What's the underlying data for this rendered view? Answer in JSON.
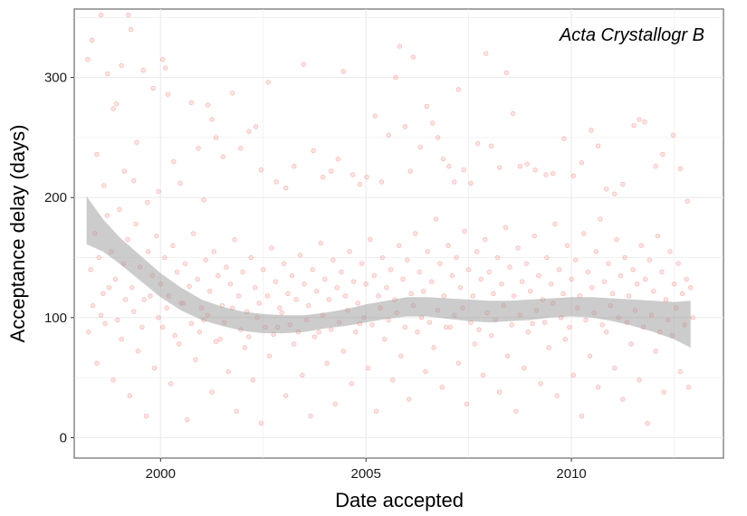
{
  "chart_data": {
    "type": "scatter",
    "title": "",
    "panel_label": "Acta Crystallogr B",
    "xlabel": "Date accepted",
    "ylabel": "Acceptance delay (days)",
    "xlim": [
      1997.9,
      2013.7
    ],
    "ylim": [
      -17,
      357
    ],
    "x_ticks": [
      {
        "value": 2000,
        "label": "2000"
      },
      {
        "value": 2005,
        "label": "2005"
      },
      {
        "value": 2010,
        "label": "2010"
      }
    ],
    "y_ticks": [
      {
        "value": 0,
        "label": "0"
      },
      {
        "value": 100,
        "label": "100"
      },
      {
        "value": 200,
        "label": "200"
      },
      {
        "value": 300,
        "label": "300"
      }
    ],
    "grid": true,
    "points_color": "#f8766d",
    "band_color": "#999999",
    "smooth": {
      "x": [
        1998.2,
        1998.6,
        1999.0,
        1999.5,
        2000.0,
        2000.5,
        2001.0,
        2001.5,
        2002.0,
        2002.5,
        2003.0,
        2003.5,
        2004.0,
        2004.5,
        2005.0,
        2005.5,
        2006.0,
        2006.5,
        2007.0,
        2007.5,
        2008.0,
        2008.5,
        2009.0,
        2009.5,
        2010.0,
        2010.5,
        2011.0,
        2011.5,
        2012.0,
        2012.5,
        2012.9
      ],
      "lower": [
        161,
        155,
        145,
        131,
        117,
        106,
        98,
        93,
        89,
        87,
        87,
        88,
        91,
        93,
        96,
        99,
        101,
        101,
        99,
        97,
        96,
        97,
        98,
        100,
        101,
        100,
        97,
        93,
        88,
        82,
        75
      ],
      "upper": [
        201,
        182,
        167,
        152,
        137,
        125,
        115,
        109,
        105,
        103,
        102,
        102,
        104,
        107,
        111,
        114,
        117,
        117,
        116,
        115,
        114,
        114,
        115,
        116,
        117,
        117,
        116,
        115,
        114,
        113,
        114
      ]
    },
    "points": [
      [
        1998.23,
        315
      ],
      [
        1998.33,
        331
      ],
      [
        1998.45,
        236
      ],
      [
        1998.55,
        352
      ],
      [
        1998.62,
        210
      ],
      [
        1998.71,
        303
      ],
      [
        1998.85,
        274
      ],
      [
        1998.93,
        278
      ],
      [
        1999.05,
        310
      ],
      [
        1999.12,
        222
      ],
      [
        1999.22,
        352
      ],
      [
        1999.28,
        340
      ],
      [
        1999.35,
        214
      ],
      [
        1999.42,
        246
      ],
      [
        1999.58,
        306
      ],
      [
        1999.68,
        196
      ],
      [
        1999.82,
        291
      ],
      [
        1999.95,
        205
      ],
      [
        2000.05,
        315
      ],
      [
        2000.12,
        308
      ],
      [
        2000.18,
        286
      ],
      [
        2000.32,
        230
      ],
      [
        2000.48,
        212
      ],
      [
        2000.75,
        279
      ],
      [
        2000.92,
        241
      ],
      [
        2001.05,
        198
      ],
      [
        2001.15,
        277
      ],
      [
        2001.25,
        265
      ],
      [
        2001.35,
        250
      ],
      [
        2001.52,
        234
      ],
      [
        2001.75,
        287
      ],
      [
        2001.95,
        241
      ],
      [
        2002.15,
        255
      ],
      [
        2002.32,
        259
      ],
      [
        2002.45,
        223
      ],
      [
        2002.62,
        296
      ],
      [
        2002.82,
        213
      ],
      [
        2003.05,
        208
      ],
      [
        2003.25,
        226
      ],
      [
        2003.48,
        311
      ],
      [
        2003.72,
        239
      ],
      [
        2003.95,
        217
      ],
      [
        2004.15,
        222
      ],
      [
        2004.32,
        232
      ],
      [
        2004.45,
        305
      ],
      [
        2004.68,
        219
      ],
      [
        2004.85,
        211
      ],
      [
        2005.02,
        217
      ],
      [
        2005.22,
        268
      ],
      [
        2005.38,
        213
      ],
      [
        2005.55,
        252
      ],
      [
        2005.72,
        300
      ],
      [
        2005.82,
        326
      ],
      [
        2005.95,
        259
      ],
      [
        2006.08,
        222
      ],
      [
        2006.15,
        317
      ],
      [
        2006.32,
        242
      ],
      [
        2006.48,
        276
      ],
      [
        2006.62,
        262
      ],
      [
        2006.75,
        250
      ],
      [
        2006.88,
        232
      ],
      [
        2007.02,
        226
      ],
      [
        2007.15,
        213
      ],
      [
        2007.25,
        290
      ],
      [
        2007.38,
        223
      ],
      [
        2007.55,
        212
      ],
      [
        2007.72,
        245
      ],
      [
        2007.92,
        320
      ],
      [
        2008.05,
        243
      ],
      [
        2008.25,
        225
      ],
      [
        2008.42,
        304
      ],
      [
        2008.58,
        270
      ],
      [
        2008.75,
        226
      ],
      [
        2008.92,
        228
      ],
      [
        2009.12,
        223
      ],
      [
        2009.38,
        219
      ],
      [
        2009.55,
        220
      ],
      [
        2009.82,
        249
      ],
      [
        2010.05,
        218
      ],
      [
        2010.25,
        229
      ],
      [
        2010.48,
        256
      ],
      [
        2010.65,
        243
      ],
      [
        2010.85,
        207
      ],
      [
        2011.05,
        203
      ],
      [
        2011.25,
        211
      ],
      [
        2011.52,
        260
      ],
      [
        2011.65,
        265
      ],
      [
        2011.78,
        263
      ],
      [
        2012.05,
        226
      ],
      [
        2012.22,
        236
      ],
      [
        2012.48,
        252
      ],
      [
        2012.65,
        224
      ],
      [
        2012.82,
        197
      ],
      [
        1998.3,
        140
      ],
      [
        1998.4,
        170
      ],
      [
        1998.5,
        150
      ],
      [
        1998.6,
        120
      ],
      [
        1998.7,
        185
      ],
      [
        1998.8,
        155
      ],
      [
        1998.9,
        132
      ],
      [
        1999.0,
        190
      ],
      [
        1999.1,
        145
      ],
      [
        1999.2,
        165
      ],
      [
        1999.3,
        125
      ],
      [
        1999.4,
        178
      ],
      [
        1999.5,
        142
      ],
      [
        1999.6,
        115
      ],
      [
        1999.7,
        155
      ],
      [
        1999.8,
        135
      ],
      [
        1999.9,
        168
      ],
      [
        2000.0,
        128
      ],
      [
        2000.1,
        150
      ],
      [
        2000.2,
        118
      ],
      [
        2000.3,
        160
      ],
      [
        2000.4,
        138
      ],
      [
        2000.5,
        112
      ],
      [
        2000.6,
        145
      ],
      [
        2000.7,
        126
      ],
      [
        2000.8,
        170
      ],
      [
        2000.9,
        132
      ],
      [
        2001.0,
        108
      ],
      [
        2001.1,
        148
      ],
      [
        2001.2,
        122
      ],
      [
        2001.3,
        155
      ],
      [
        2001.4,
        135
      ],
      [
        2001.5,
        110
      ],
      [
        2001.6,
        142
      ],
      [
        2001.7,
        128
      ],
      [
        2001.8,
        165
      ],
      [
        2001.9,
        118
      ],
      [
        2002.0,
        138
      ],
      [
        2002.1,
        105
      ],
      [
        2002.2,
        150
      ],
      [
        2002.3,
        125
      ],
      [
        2002.4,
        112
      ],
      [
        2002.5,
        140
      ],
      [
        2002.6,
        118
      ],
      [
        2002.7,
        158
      ],
      [
        2002.8,
        130
      ],
      [
        2002.9,
        108
      ],
      [
        2003.0,
        145
      ],
      [
        2003.1,
        120
      ],
      [
        2003.2,
        135
      ],
      [
        2003.3,
        115
      ],
      [
        2003.4,
        152
      ],
      [
        2003.5,
        128
      ],
      [
        2003.6,
        110
      ],
      [
        2003.7,
        140
      ],
      [
        2003.8,
        122
      ],
      [
        2003.9,
        162
      ],
      [
        2004.0,
        132
      ],
      [
        2004.1,
        115
      ],
      [
        2004.2,
        148
      ],
      [
        2004.3,
        125
      ],
      [
        2004.4,
        138
      ],
      [
        2004.5,
        118
      ],
      [
        2004.6,
        155
      ],
      [
        2004.7,
        130
      ],
      [
        2004.8,
        112
      ],
      [
        2004.9,
        145
      ],
      [
        2005.0,
        128
      ],
      [
        2005.1,
        165
      ],
      [
        2005.2,
        135
      ],
      [
        2005.3,
        118
      ],
      [
        2005.4,
        150
      ],
      [
        2005.5,
        125
      ],
      [
        2005.6,
        140
      ],
      [
        2005.7,
        115
      ],
      [
        2005.8,
        160
      ],
      [
        2005.9,
        132
      ],
      [
        2006.0,
        148
      ],
      [
        2006.1,
        120
      ],
      [
        2006.2,
        170
      ],
      [
        2006.3,
        138
      ],
      [
        2006.4,
        122
      ],
      [
        2006.5,
        155
      ],
      [
        2006.6,
        130
      ],
      [
        2006.7,
        182
      ],
      [
        2006.8,
        145
      ],
      [
        2006.9,
        118
      ],
      [
        2007.0,
        160
      ],
      [
        2007.1,
        135
      ],
      [
        2007.2,
        150
      ],
      [
        2007.3,
        125
      ],
      [
        2007.4,
        172
      ],
      [
        2007.5,
        140
      ],
      [
        2007.6,
        118
      ],
      [
        2007.7,
        155
      ],
      [
        2007.8,
        132
      ],
      [
        2007.9,
        165
      ],
      [
        2008.0,
        138
      ],
      [
        2008.1,
        120
      ],
      [
        2008.2,
        150
      ],
      [
        2008.3,
        128
      ],
      [
        2008.4,
        175
      ],
      [
        2008.5,
        142
      ],
      [
        2008.6,
        118
      ],
      [
        2008.7,
        158
      ],
      [
        2008.8,
        130
      ],
      [
        2008.9,
        145
      ],
      [
        2009.0,
        122
      ],
      [
        2009.1,
        168
      ],
      [
        2009.2,
        135
      ],
      [
        2009.3,
        115
      ],
      [
        2009.4,
        150
      ],
      [
        2009.5,
        128
      ],
      [
        2009.6,
        178
      ],
      [
        2009.7,
        140
      ],
      [
        2009.8,
        120
      ],
      [
        2009.9,
        160
      ],
      [
        2010.0,
        132
      ],
      [
        2010.1,
        148
      ],
      [
        2010.2,
        118
      ],
      [
        2010.3,
        170
      ],
      [
        2010.4,
        138
      ],
      [
        2010.5,
        125
      ],
      [
        2010.6,
        155
      ],
      [
        2010.7,
        182
      ],
      [
        2010.8,
        130
      ],
      [
        2010.9,
        145
      ],
      [
        2011.0,
        120
      ],
      [
        2011.1,
        165
      ],
      [
        2011.2,
        135
      ],
      [
        2011.3,
        150
      ],
      [
        2011.4,
        118
      ],
      [
        2011.5,
        140
      ],
      [
        2011.6,
        128
      ],
      [
        2011.7,
        160
      ],
      [
        2011.8,
        132
      ],
      [
        2011.9,
        148
      ],
      [
        2012.0,
        122
      ],
      [
        2012.1,
        168
      ],
      [
        2012.2,
        138
      ],
      [
        2012.3,
        115
      ],
      [
        2012.4,
        155
      ],
      [
        2012.5,
        128
      ],
      [
        2012.6,
        145
      ],
      [
        2012.7,
        120
      ],
      [
        2012.8,
        132
      ],
      [
        2012.9,
        125
      ],
      [
        1998.25,
        88
      ],
      [
        1998.45,
        62
      ],
      [
        1998.65,
        95
      ],
      [
        1998.85,
        48
      ],
      [
        1999.05,
        82
      ],
      [
        1999.25,
        35
      ],
      [
        1999.45,
        72
      ],
      [
        1999.65,
        18
      ],
      [
        1999.85,
        58
      ],
      [
        2000.05,
        92
      ],
      [
        2000.25,
        45
      ],
      [
        2000.45,
        78
      ],
      [
        2000.65,
        15
      ],
      [
        2000.85,
        65
      ],
      [
        2001.05,
        98
      ],
      [
        2001.25,
        38
      ],
      [
        2001.45,
        82
      ],
      [
        2001.65,
        55
      ],
      [
        2001.85,
        22
      ],
      [
        2002.05,
        75
      ],
      [
        2002.25,
        48
      ],
      [
        2002.45,
        12
      ],
      [
        2002.65,
        68
      ],
      [
        2002.85,
        92
      ],
      [
        2003.05,
        35
      ],
      [
        2003.25,
        78
      ],
      [
        2003.45,
        52
      ],
      [
        2003.65,
        18
      ],
      [
        2003.85,
        88
      ],
      [
        2004.05,
        62
      ],
      [
        2004.25,
        28
      ],
      [
        2004.45,
        72
      ],
      [
        2004.65,
        45
      ],
      [
        2004.85,
        95
      ],
      [
        2005.05,
        58
      ],
      [
        2005.25,
        22
      ],
      [
        2005.45,
        82
      ],
      [
        2005.65,
        48
      ],
      [
        2005.85,
        68
      ],
      [
        2006.05,
        32
      ],
      [
        2006.25,
        88
      ],
      [
        2006.45,
        55
      ],
      [
        2006.65,
        75
      ],
      [
        2006.85,
        42
      ],
      [
        2007.05,
        92
      ],
      [
        2007.25,
        62
      ],
      [
        2007.45,
        28
      ],
      [
        2007.65,
        78
      ],
      [
        2007.85,
        52
      ],
      [
        2008.05,
        85
      ],
      [
        2008.25,
        38
      ],
      [
        2008.45,
        68
      ],
      [
        2008.65,
        22
      ],
      [
        2008.85,
        58
      ],
      [
        2009.05,
        95
      ],
      [
        2009.25,
        45
      ],
      [
        2009.45,
        75
      ],
      [
        2009.65,
        35
      ],
      [
        2009.85,
        82
      ],
      [
        2010.05,
        52
      ],
      [
        2010.25,
        18
      ],
      [
        2010.45,
        68
      ],
      [
        2010.65,
        42
      ],
      [
        2010.85,
        88
      ],
      [
        2011.05,
        58
      ],
      [
        2011.25,
        32
      ],
      [
        2011.45,
        78
      ],
      [
        2011.65,
        48
      ],
      [
        2011.85,
        12
      ],
      [
        2012.05,
        72
      ],
      [
        2012.25,
        38
      ],
      [
        2012.45,
        85
      ],
      [
        2012.65,
        55
      ],
      [
        2012.85,
        42
      ],
      [
        1998.35,
        110
      ],
      [
        1998.55,
        102
      ],
      [
        1998.75,
        125
      ],
      [
        1998.95,
        98
      ],
      [
        1999.15,
        115
      ],
      [
        1999.35,
        105
      ],
      [
        1999.55,
        92
      ],
      [
        1999.75,
        118
      ],
      [
        1999.95,
        100
      ],
      [
        2000.15,
        108
      ],
      [
        2000.35,
        85
      ],
      [
        2000.55,
        112
      ],
      [
        2000.75,
        95
      ],
      [
        2000.95,
        88
      ],
      [
        2001.15,
        102
      ],
      [
        2001.35,
        80
      ],
      [
        2001.55,
        96
      ],
      [
        2001.75,
        108
      ],
      [
        2001.95,
        90
      ],
      [
        2002.15,
        84
      ],
      [
        2002.35,
        100
      ],
      [
        2002.55,
        92
      ],
      [
        2002.75,
        86
      ],
      [
        2002.95,
        104
      ],
      [
        2003.15,
        94
      ],
      [
        2003.35,
        88
      ],
      [
        2003.55,
        98
      ],
      [
        2003.75,
        84
      ],
      [
        2003.95,
        102
      ],
      [
        2004.15,
        90
      ],
      [
        2004.35,
        96
      ],
      [
        2004.55,
        106
      ],
      [
        2004.75,
        88
      ],
      [
        2004.95,
        100
      ],
      [
        2005.15,
        94
      ],
      [
        2005.35,
        108
      ],
      [
        2005.55,
        98
      ],
      [
        2005.75,
        104
      ],
      [
        2005.95,
        92
      ],
      [
        2006.15,
        110
      ],
      [
        2006.35,
        100
      ],
      [
        2006.55,
        96
      ],
      [
        2006.75,
        106
      ],
      [
        2006.95,
        92
      ],
      [
        2007.15,
        102
      ],
      [
        2007.35,
        108
      ],
      [
        2007.55,
        96
      ],
      [
        2007.75,
        90
      ],
      [
        2007.95,
        104
      ],
      [
        2008.15,
        98
      ],
      [
        2008.35,
        110
      ],
      [
        2008.55,
        94
      ],
      [
        2008.75,
        102
      ],
      [
        2008.95,
        88
      ],
      [
        2009.15,
        106
      ],
      [
        2009.35,
        96
      ],
      [
        2009.55,
        112
      ],
      [
        2009.75,
        100
      ],
      [
        2009.95,
        92
      ],
      [
        2010.15,
        108
      ],
      [
        2010.35,
        98
      ],
      [
        2010.55,
        104
      ],
      [
        2010.75,
        94
      ],
      [
        2010.95,
        110
      ],
      [
        2011.15,
        100
      ],
      [
        2011.35,
        96
      ],
      [
        2011.55,
        106
      ],
      [
        2011.75,
        92
      ],
      [
        2011.95,
        102
      ],
      [
        2012.15,
        88
      ],
      [
        2012.35,
        98
      ],
      [
        2012.55,
        108
      ],
      [
        2012.75,
        94
      ],
      [
        2012.95,
        100
      ]
    ]
  }
}
